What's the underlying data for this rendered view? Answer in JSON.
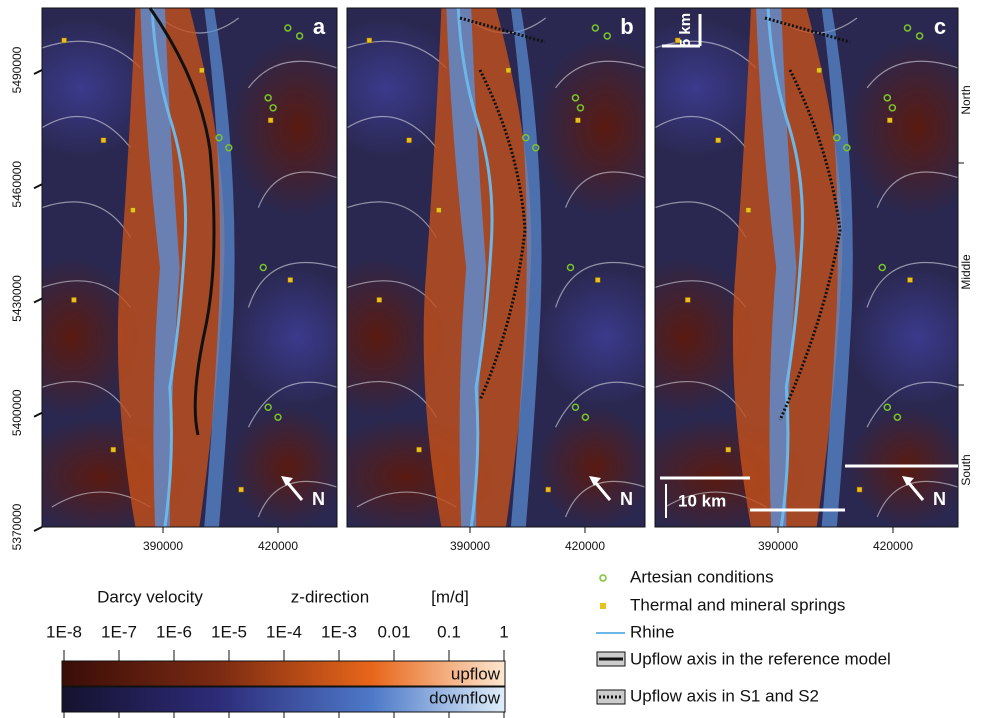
{
  "panels": [
    {
      "label": "a"
    },
    {
      "label": "b"
    },
    {
      "label": "c"
    }
  ],
  "y_axis": {
    "ticks": [
      "5490000",
      "5460000",
      "5430000",
      "5400000",
      "5370000"
    ]
  },
  "x_axis": {
    "ticks": [
      "390000",
      "420000"
    ]
  },
  "north_arrow": "N",
  "scale_bars": {
    "top": "5 km",
    "bottom": "10 km"
  },
  "regions": [
    "North",
    "Middle",
    "South"
  ],
  "colorbar": {
    "title": "Darcy velocity",
    "subtitle": "z-direction",
    "unit": "[m/d]",
    "ticks": [
      "1E-8",
      "1E-7",
      "1E-6",
      "1E-5",
      "1E-4",
      "1E-3",
      "0.01",
      "0.1",
      "1"
    ],
    "upflow": "upflow",
    "downflow": "downflow"
  },
  "legend": [
    {
      "label": "Artesian conditions"
    },
    {
      "label": "Thermal and mineral springs"
    },
    {
      "label": "Rhine"
    },
    {
      "label": "Upflow axis in the reference model"
    },
    {
      "label": "Upflow axis in S1 and S2"
    }
  ]
}
